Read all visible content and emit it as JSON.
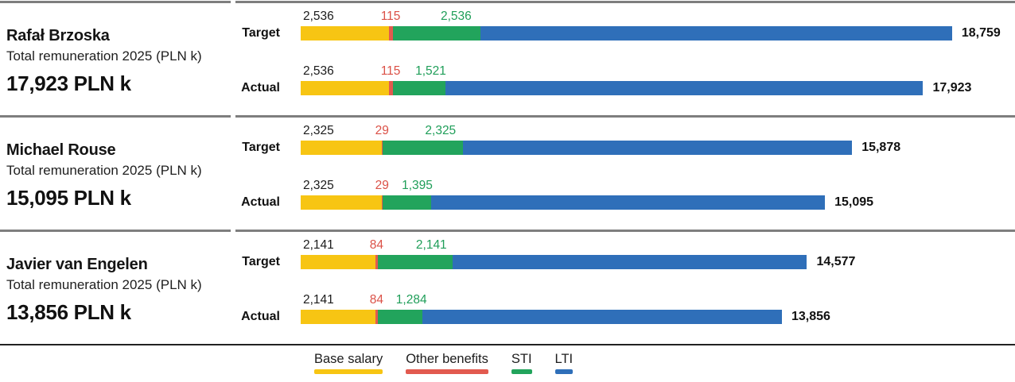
{
  "colors": {
    "base_salary": "#F7C513",
    "other_benefits": "#E25A4F",
    "sti": "#22A45C",
    "lti": "#2F6FB9",
    "benefits_label_text": "#DB5147",
    "sti_label_text": "#1F9E59",
    "divider": "#7E7E7E",
    "footer_rule": "#222222"
  },
  "legend": {
    "items": [
      {
        "label": "Base salary",
        "color_key": "base_salary"
      },
      {
        "label": "Other benefits",
        "color_key": "other_benefits"
      },
      {
        "label": "STI",
        "color_key": "sti"
      },
      {
        "label": "LTI",
        "color_key": "lti"
      }
    ]
  },
  "chart_data": {
    "type": "bar",
    "orientation": "horizontal",
    "stacked": true,
    "unit": "PLN k",
    "axis_max": 18759,
    "segment_order": [
      "Base salary",
      "Other benefits",
      "STI",
      "LTI"
    ],
    "people": [
      {
        "name": "Rafał Brzoska",
        "subtitle": "Total remuneration 2025 (PLN k)",
        "total_display": "17,923 PLN k",
        "bars": [
          {
            "label": "Target",
            "base_salary": 2536,
            "other_benefits": 115,
            "sti": 2536,
            "lti": 13572,
            "total": 18759,
            "base_salary_label": "2,536",
            "other_benefits_label": "115",
            "sti_label": "2,536",
            "total_label": "18,759"
          },
          {
            "label": "Actual",
            "base_salary": 2536,
            "other_benefits": 115,
            "sti": 1521,
            "lti": 13751,
            "total": 17923,
            "base_salary_label": "2,536",
            "other_benefits_label": "115",
            "sti_label": "1,521",
            "total_label": "17,923"
          }
        ]
      },
      {
        "name": "Michael Rouse",
        "subtitle": "Total remuneration 2025 (PLN k)",
        "total_display": "15,095 PLN k",
        "bars": [
          {
            "label": "Target",
            "base_salary": 2325,
            "other_benefits": 29,
            "sti": 2325,
            "lti": 11199,
            "total": 15878,
            "base_salary_label": "2,325",
            "other_benefits_label": "29",
            "sti_label": "2,325",
            "total_label": "15,878"
          },
          {
            "label": "Actual",
            "base_salary": 2325,
            "other_benefits": 29,
            "sti": 1395,
            "lti": 11346,
            "total": 15095,
            "base_salary_label": "2,325",
            "other_benefits_label": "29",
            "sti_label": "1,395",
            "total_label": "15,095"
          }
        ]
      },
      {
        "name": "Javier van Engelen",
        "subtitle": "Total remuneration 2025 (PLN k)",
        "total_display": "13,856 PLN k",
        "bars": [
          {
            "label": "Target",
            "base_salary": 2141,
            "other_benefits": 84,
            "sti": 2141,
            "lti": 10211,
            "total": 14577,
            "base_salary_label": "2,141",
            "other_benefits_label": "84",
            "sti_label": "2,141",
            "total_label": "14,577"
          },
          {
            "label": "Actual",
            "base_salary": 2141,
            "other_benefits": 84,
            "sti": 1284,
            "lti": 10347,
            "total": 13856,
            "base_salary_label": "2,141",
            "other_benefits_label": "84",
            "sti_label": "1,284",
            "total_label": "13,856"
          }
        ]
      }
    ]
  }
}
